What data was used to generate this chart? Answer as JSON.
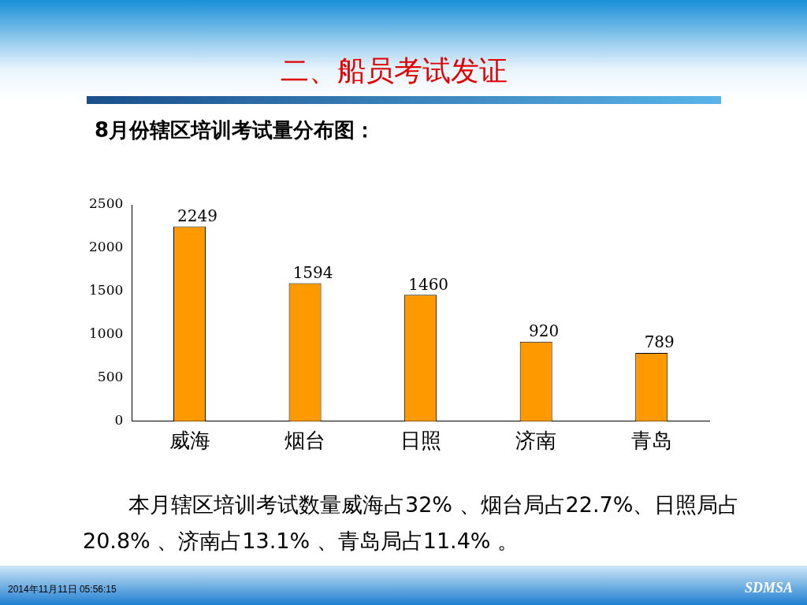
{
  "chart_data": {
    "type": "bar",
    "title": "二、船员考试发证",
    "subtitle": "8月份辖区培训考试量分布图：",
    "categories": [
      "威海",
      "烟台",
      "日照",
      "济南",
      "青岛"
    ],
    "values": [
      2249,
      1594,
      1460,
      920,
      789
    ],
    "color": "#ff9900",
    "ylim": [
      0,
      2500
    ],
    "yticks": [
      0,
      500,
      1000,
      1500,
      2000,
      2500
    ],
    "grid": false,
    "data_labels": true,
    "annotations": [
      "本月辖区培训考试数量威海占32% 、烟台局占22.7%、日照局占20.8% 、济南占13.1% 、青岛局占11.4% 。",
      "2014年11月11日  05:56:15",
      "SDMSA"
    ]
  }
}
